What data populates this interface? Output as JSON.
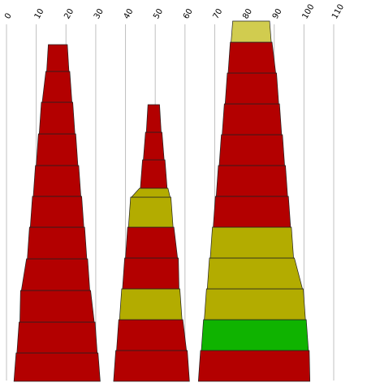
{
  "chart_data": {
    "type": "bar",
    "x_axis": {
      "range": [
        0,
        110
      ],
      "ticks": [
        0,
        10,
        20,
        30,
        40,
        50,
        60,
        70,
        80,
        90,
        100,
        110
      ],
      "tick_labels": [
        "0",
        "10",
        "20",
        "30",
        "40",
        "50",
        "60",
        "70",
        "80",
        "90",
        "100",
        "110"
      ],
      "position": "top",
      "label_rotation": -60
    },
    "grid": true,
    "legend": "none",
    "colors": {
      "red": "#b30000",
      "olive": "#b3ac00",
      "green": "#0fb300",
      "yellow": "#d1cc4f"
    },
    "stacks": [
      {
        "segments": [
          {
            "left": 2.5,
            "right": 31.5,
            "color": "red"
          },
          {
            "left": 3.5,
            "right": 30.5,
            "color": "red"
          },
          {
            "left": 4.5,
            "right": 29.5,
            "color": "red"
          },
          {
            "left": 5.0,
            "right": 28.0,
            "color": "red"
          },
          {
            "left": 7.0,
            "right": 27.0,
            "color": "red"
          },
          {
            "left": 8.0,
            "right": 26.0,
            "color": "red"
          },
          {
            "left": 9.0,
            "right": 25.0,
            "color": "red"
          },
          {
            "left": 10.0,
            "right": 24.0,
            "color": "red"
          },
          {
            "left": 11.0,
            "right": 23.0,
            "color": "red"
          },
          {
            "left": 12.0,
            "right": 22.0,
            "color": "red"
          },
          {
            "left": 13.5,
            "right": 21.0,
            "color": "red"
          }
        ]
      },
      {
        "segments": [
          {
            "left": 36.0,
            "right": 61.5,
            "color": "red"
          },
          {
            "left": 37.0,
            "right": 60.5,
            "color": "red"
          },
          {
            "left": 38.0,
            "right": 59.0,
            "color": "olive"
          },
          {
            "left": 39.0,
            "right": 58.0,
            "color": "red"
          },
          {
            "left": 40.0,
            "right": 57.5,
            "color": "red"
          },
          {
            "left": 41.0,
            "right": 56.0,
            "color": "olive"
          },
          {
            "left": 42.0,
            "right": 55.0,
            "color": "olive"
          },
          {
            "left": 45.0,
            "right": 54.0,
            "color": "red"
          },
          {
            "left": 46.0,
            "right": 53.0,
            "color": "red"
          },
          {
            "left": 47.0,
            "right": 52.0,
            "color": "red"
          }
        ]
      },
      {
        "segments": [
          {
            "left": 64.5,
            "right": 102.0,
            "color": "red"
          },
          {
            "left": 65.5,
            "right": 101.5,
            "color": "green"
          },
          {
            "left": 66.5,
            "right": 100.5,
            "color": "olive"
          },
          {
            "left": 67.5,
            "right": 99.5,
            "color": "olive"
          },
          {
            "left": 68.5,
            "right": 96.5,
            "color": "olive"
          },
          {
            "left": 69.5,
            "right": 95.5,
            "color": "red"
          },
          {
            "left": 70.5,
            "right": 94.5,
            "color": "red"
          },
          {
            "left": 71.5,
            "right": 93.5,
            "color": "red"
          },
          {
            "left": 72.5,
            "right": 92.5,
            "color": "red"
          },
          {
            "left": 73.5,
            "right": 91.5,
            "color": "red"
          },
          {
            "left": 74.5,
            "right": 90.5,
            "color": "red"
          },
          {
            "left": 75.5,
            "right": 89.0,
            "color": "yellow"
          }
        ]
      }
    ]
  }
}
